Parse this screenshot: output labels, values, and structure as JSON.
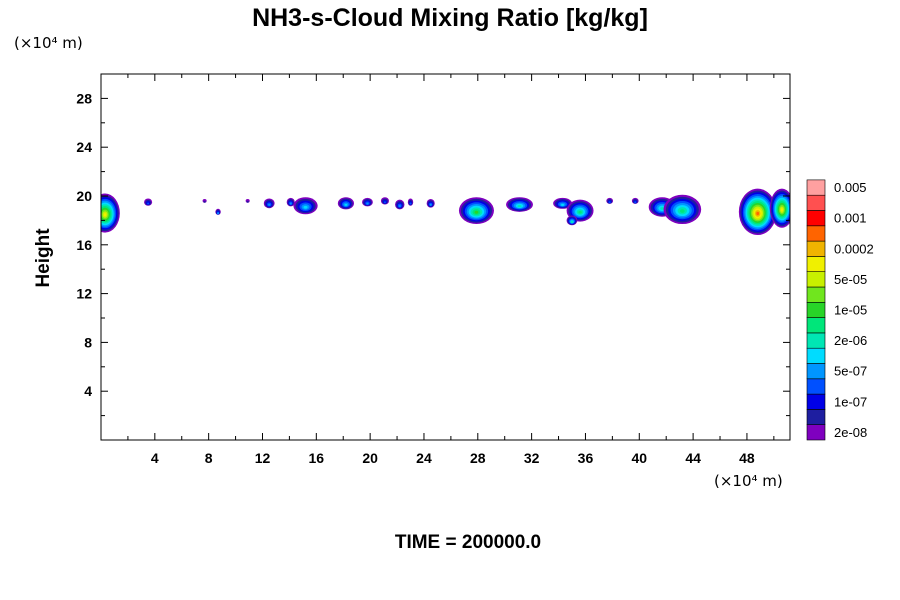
{
  "chart_data": {
    "type": "heatmap",
    "title": "NH3-s-Cloud Mixing Ratio [kg/kg]",
    "xlabel": "",
    "ylabel": "Height",
    "x_unit": "(×10⁴ m)",
    "y_unit": "(×10⁴ m)",
    "xlim": [
      0,
      51.2
    ],
    "ylim": [
      0,
      30
    ],
    "x_ticks": [
      4,
      8,
      12,
      16,
      20,
      24,
      28,
      32,
      36,
      40,
      44,
      48
    ],
    "y_ticks": [
      4,
      8,
      12,
      16,
      20,
      24,
      28
    ],
    "grid": false,
    "legend": "right",
    "colorbar": {
      "colors": [
        "#7f00bf",
        "#1e1ea0",
        "#0000e6",
        "#0050ff",
        "#0096ff",
        "#00dcff",
        "#00e6b4",
        "#00e67a",
        "#28d428",
        "#70e61e",
        "#c8f000",
        "#f0f000",
        "#f0b400",
        "#ff6400",
        "#ff0000",
        "#ff5050",
        "#ffa0a0"
      ],
      "labels": [
        "2e-08",
        "1e-07",
        "5e-07",
        "2e-06",
        "1e-05",
        "5e-05",
        "0.0002",
        "0.001",
        "0.005"
      ]
    },
    "cloud_regions": [
      {
        "x": 0.3,
        "y": 18.6,
        "rx": 1.1,
        "ry": 1.6,
        "max_level": 11
      },
      {
        "x": 3.5,
        "y": 19.5,
        "rx": 0.3,
        "ry": 0.3,
        "max_level": 3
      },
      {
        "x": 7.7,
        "y": 19.6,
        "rx": 0.15,
        "ry": 0.15,
        "max_level": 1
      },
      {
        "x": 8.7,
        "y": 18.7,
        "rx": 0.2,
        "ry": 0.25,
        "max_level": 4
      },
      {
        "x": 10.9,
        "y": 19.6,
        "rx": 0.15,
        "ry": 0.15,
        "max_level": 1
      },
      {
        "x": 12.5,
        "y": 19.4,
        "rx": 0.4,
        "ry": 0.4,
        "max_level": 4
      },
      {
        "x": 14.1,
        "y": 19.5,
        "rx": 0.3,
        "ry": 0.35,
        "max_level": 4
      },
      {
        "x": 15.2,
        "y": 19.2,
        "rx": 0.9,
        "ry": 0.7,
        "max_level": 5
      },
      {
        "x": 18.2,
        "y": 19.4,
        "rx": 0.6,
        "ry": 0.5,
        "max_level": 5
      },
      {
        "x": 19.8,
        "y": 19.5,
        "rx": 0.4,
        "ry": 0.35,
        "max_level": 4
      },
      {
        "x": 21.1,
        "y": 19.6,
        "rx": 0.3,
        "ry": 0.3,
        "max_level": 3
      },
      {
        "x": 22.2,
        "y": 19.3,
        "rx": 0.35,
        "ry": 0.4,
        "max_level": 4
      },
      {
        "x": 23.0,
        "y": 19.5,
        "rx": 0.2,
        "ry": 0.3,
        "max_level": 3
      },
      {
        "x": 24.5,
        "y": 19.4,
        "rx": 0.3,
        "ry": 0.35,
        "max_level": 4
      },
      {
        "x": 27.9,
        "y": 18.8,
        "rx": 1.3,
        "ry": 1.1,
        "max_level": 8
      },
      {
        "x": 31.1,
        "y": 19.3,
        "rx": 1.0,
        "ry": 0.6,
        "max_level": 6
      },
      {
        "x": 34.3,
        "y": 19.4,
        "rx": 0.7,
        "ry": 0.45,
        "max_level": 5
      },
      {
        "x": 35.6,
        "y": 18.8,
        "rx": 1.0,
        "ry": 0.9,
        "max_level": 7
      },
      {
        "x": 35.0,
        "y": 18.0,
        "rx": 0.4,
        "ry": 0.4,
        "max_level": 6
      },
      {
        "x": 37.8,
        "y": 19.6,
        "rx": 0.25,
        "ry": 0.25,
        "max_level": 3
      },
      {
        "x": 39.7,
        "y": 19.6,
        "rx": 0.25,
        "ry": 0.25,
        "max_level": 3
      },
      {
        "x": 41.7,
        "y": 19.1,
        "rx": 1.0,
        "ry": 0.8,
        "max_level": 6
      },
      {
        "x": 43.2,
        "y": 18.9,
        "rx": 1.4,
        "ry": 1.2,
        "max_level": 7
      },
      {
        "x": 48.8,
        "y": 18.7,
        "rx": 1.4,
        "ry": 1.9,
        "max_level": 13
      },
      {
        "x": 50.6,
        "y": 19.0,
        "rx": 0.9,
        "ry": 1.6,
        "max_level": 11
      }
    ]
  },
  "time_label": "TIME = 200000.0"
}
